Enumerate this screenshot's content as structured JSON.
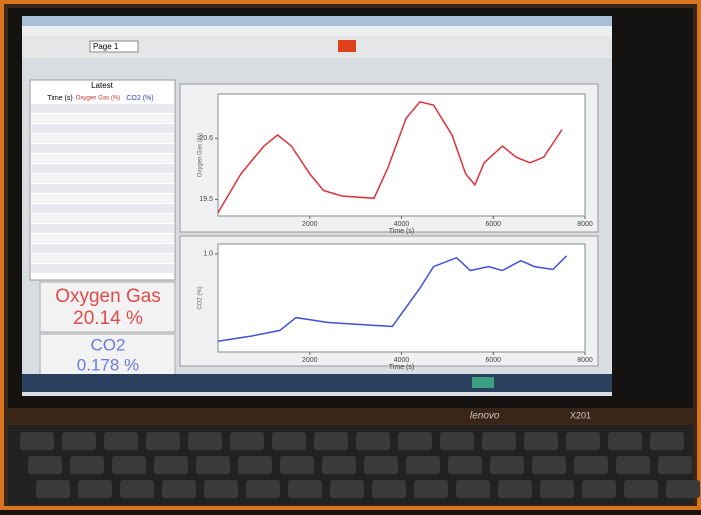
{
  "window": {
    "toolbar": {
      "page": "Page 1"
    }
  },
  "table": {
    "title": "Latest",
    "headers": [
      "Time (s)",
      "Oxygen Gas (%)",
      "CO2 (%)"
    ]
  },
  "meters": [
    {
      "label": "Oxygen Gas",
      "value": "20.14 %"
    },
    {
      "label": "CO2",
      "value": "0.178 %"
    }
  ],
  "chart_data": [
    {
      "type": "line",
      "y_label": "Oxygen Gas (%)",
      "x_label": "Time (s)",
      "x": [
        0,
        500,
        1000,
        1300,
        1600,
        2000,
        2300,
        2700,
        3400,
        3700,
        4100,
        4400,
        4700,
        5100,
        5400,
        5600,
        5800,
        6200,
        6500,
        6800,
        7100,
        7500
      ],
      "series": [
        {
          "name": "Oxygen Gas",
          "color": "#e0303a",
          "values": [
            19.26,
            19.96,
            20.46,
            20.66,
            20.46,
            19.96,
            19.66,
            19.56,
            19.52,
            20.06,
            20.96,
            21.26,
            21.2,
            20.66,
            19.96,
            19.76,
            20.16,
            20.46,
            20.26,
            20.16,
            20.26,
            20.76
          ]
        }
      ],
      "xlim": [
        0,
        8000
      ],
      "xticks": [
        2000,
        4000,
        6000,
        8000
      ],
      "ylim": [
        19.2,
        21.4
      ],
      "yticks": [
        19.5,
        20.6
      ]
    },
    {
      "type": "line",
      "y_label": "CO2 (%)",
      "x_label": "Time (s)",
      "x": [
        0,
        700,
        1350,
        1700,
        2400,
        3100,
        3800,
        4000,
        4400,
        4700,
        5200,
        5500,
        5900,
        6200,
        6600,
        6900,
        7300,
        7600
      ],
      "series": [
        {
          "name": "CO2",
          "color": "#4050d8",
          "values": [
            0.11,
            0.16,
            0.22,
            0.35,
            0.3,
            0.28,
            0.26,
            0.39,
            0.65,
            0.87,
            0.96,
            0.83,
            0.87,
            0.83,
            0.93,
            0.87,
            0.84,
            0.98
          ]
        }
      ],
      "xlim": [
        0,
        8000
      ],
      "xticks": [
        2000,
        4000,
        6000,
        8000
      ],
      "ylim": [
        0,
        1.1
      ],
      "yticks": [
        {
          "value": 1,
          "label": "1.0"
        }
      ]
    }
  ],
  "laptop": {
    "brand": "lenovo",
    "model": "X201"
  }
}
